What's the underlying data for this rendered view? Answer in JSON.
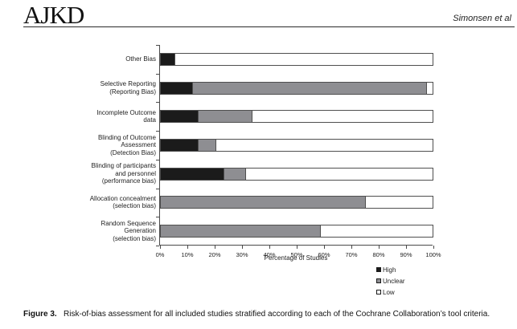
{
  "header": {
    "logo": "AJKD",
    "running_head": "Simonsen et al"
  },
  "chart_data": {
    "type": "bar",
    "orientation": "horizontal-stacked",
    "title": "",
    "xlabel": "Percentage of Studies",
    "xlim": [
      0,
      100
    ],
    "x_ticks": [
      "0%",
      "10%",
      "20%",
      "30%",
      "40%",
      "50%",
      "60%",
      "70%",
      "80%",
      "90%",
      "100%"
    ],
    "grid": false,
    "legend_position": "bottom-right",
    "categories": [
      "Other Bias",
      "Selective Reporting\n(Reporting Bias)",
      "Incomplete Outcome\ndata",
      "Blinding of Outcome\nAssessment\n(Detection Bias)",
      "Blinding of participants\nand personnel\n(performance bias)",
      "Allocation concealment\n(selection bias)",
      "Random Sequence\nGeneration\n(selection bias)"
    ],
    "series": [
      {
        "name": "High",
        "color": "#1b1b1b",
        "values": [
          5,
          11.5,
          13.5,
          13.5,
          23,
          0,
          0
        ]
      },
      {
        "name": "Unclear",
        "color": "#8e8e92",
        "values": [
          0,
          86,
          20,
          6.5,
          8,
          75,
          58.5
        ]
      },
      {
        "name": "Low",
        "color": "#ffffff",
        "values": [
          95,
          2.5,
          66.5,
          80,
          69,
          25,
          41.5
        ]
      }
    ]
  },
  "caption": {
    "label": "Figure 3.",
    "text": "Risk-of-bias assessment for all included studies stratified according to each of the Cochrane Collaboration’s tool criteria."
  }
}
